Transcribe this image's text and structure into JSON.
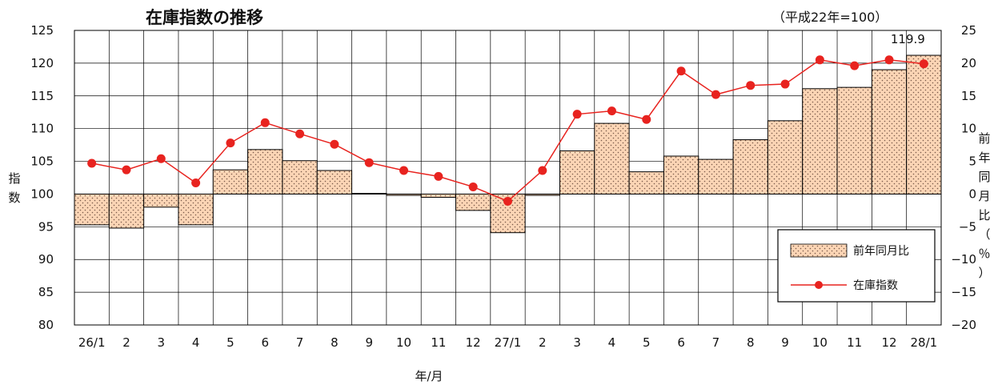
{
  "chart_data": {
    "type": "bar",
    "title": "在庫指数の推移",
    "subtitle": "（平成22年=100）",
    "xlabel": "年/月",
    "ylabel": "指数",
    "y2label": "前年同月比（％）",
    "categories": [
      "26/1",
      "2",
      "3",
      "4",
      "5",
      "6",
      "7",
      "8",
      "9",
      "10",
      "11",
      "12",
      "27/1",
      "2",
      "3",
      "4",
      "5",
      "6",
      "7",
      "8",
      "9",
      "10",
      "11",
      "12",
      "28/1"
    ],
    "ylim": [
      80,
      125
    ],
    "yticks": [
      "80",
      "85",
      "90",
      "95",
      "100",
      "105",
      "110",
      "115",
      "120",
      "125"
    ],
    "y2lim": [
      -20,
      25
    ],
    "y2ticks": [
      "−20",
      "−15",
      "−10",
      "−5",
      "0",
      "5",
      "10",
      "15",
      "20",
      "25"
    ],
    "grid": true,
    "legend_position": "bottom-right",
    "annotation": {
      "label": "119.9",
      "category_index": 24
    },
    "series": [
      {
        "name": "前年同月比",
        "type": "bar",
        "axis": "right",
        "color": "#fbd5b5",
        "values": [
          -4.7,
          -5.2,
          -2.0,
          -4.7,
          3.7,
          6.8,
          5.1,
          3.6,
          0.1,
          -0.2,
          -0.5,
          -2.5,
          -5.9,
          -0.2,
          6.6,
          10.8,
          3.4,
          5.8,
          5.3,
          8.3,
          11.2,
          16.1,
          16.3,
          19.0,
          21.2
        ]
      },
      {
        "name": "在庫指数",
        "type": "line",
        "axis": "left",
        "color": "#e8231f",
        "values": [
          104.7,
          103.7,
          105.4,
          101.7,
          107.8,
          110.9,
          109.2,
          107.6,
          104.8,
          103.6,
          102.7,
          101.1,
          98.9,
          103.6,
          112.2,
          112.7,
          111.4,
          118.8,
          115.2,
          116.6,
          116.8,
          120.5,
          119.6,
          120.5,
          119.9
        ]
      }
    ]
  }
}
